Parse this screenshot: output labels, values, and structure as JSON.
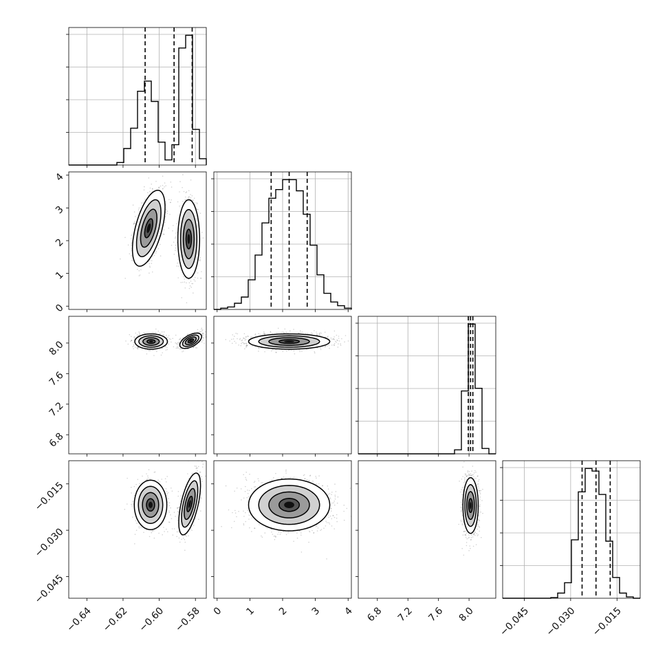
{
  "chart_data": {
    "type": "corner",
    "grid": true,
    "parameters": [
      {
        "range": [
          -0.65,
          -0.574
        ],
        "ticks": [
          -0.64,
          -0.62,
          -0.6,
          -0.58
        ],
        "tick_labels": [
          "−0.64",
          "−0.62",
          "−0.60",
          "−0.58"
        ]
      },
      {
        "range": [
          -0.1,
          4.1
        ],
        "ticks": [
          0,
          1,
          2,
          3,
          4
        ],
        "tick_labels": [
          "0",
          "1",
          "2",
          "3",
          "4"
        ]
      },
      {
        "range": [
          6.55,
          8.35
        ],
        "ticks": [
          6.8,
          7.2,
          7.6,
          8.0
        ],
        "tick_labels": [
          "6.8",
          "7.2",
          "7.6",
          "8.0"
        ]
      },
      {
        "range": [
          -0.052,
          -0.0075
        ],
        "ticks": [
          -0.045,
          -0.03,
          -0.015
        ],
        "tick_labels": [
          "−0.045",
          "−0.030",
          "−0.015"
        ]
      }
    ],
    "histograms": [
      {
        "param": 0,
        "quantiles": [
          -0.6078,
          -0.5918,
          -0.5818
        ],
        "bin_edges": [
          -0.65,
          -0.6462,
          -0.6424,
          -0.6386,
          -0.6348,
          -0.631,
          -0.6272,
          -0.6234,
          -0.6196,
          -0.6158,
          -0.612,
          -0.6082,
          -0.6044,
          -0.6006,
          -0.5968,
          -0.593,
          -0.5892,
          -0.5854,
          -0.5816,
          -0.5778,
          -0.574
        ],
        "counts": [
          0,
          0,
          0,
          0,
          0,
          0,
          0,
          0.02,
          0.13,
          0.29,
          0.58,
          0.66,
          0.5,
          0.18,
          0.04,
          0.16,
          0.92,
          1.02,
          0.28,
          0.05
        ]
      },
      {
        "param": 1,
        "quantiles": [
          1.65,
          2.2,
          2.75
        ],
        "bin_edges": [
          -0.1,
          0.11,
          0.32,
          0.53,
          0.74,
          0.95,
          1.16,
          1.37,
          1.58,
          1.79,
          2.0,
          2.21,
          2.42,
          2.63,
          2.84,
          3.05,
          3.26,
          3.47,
          3.68,
          3.89,
          4.1
        ],
        "counts": [
          0,
          0.01,
          0.02,
          0.05,
          0.1,
          0.24,
          0.44,
          0.7,
          0.9,
          0.97,
          1.05,
          1.05,
          0.96,
          0.77,
          0.52,
          0.28,
          0.13,
          0.06,
          0.03,
          0.01
        ]
      },
      {
        "param": 2,
        "quantiles": [
          7.99,
          8.02,
          8.05
        ],
        "bin_edges": [
          6.55,
          6.64,
          6.73,
          6.82,
          6.91,
          7.0,
          7.09,
          7.18,
          7.27,
          7.36,
          7.45,
          7.54,
          7.63,
          7.72,
          7.81,
          7.9,
          7.99,
          8.08,
          8.17,
          8.26,
          8.35
        ],
        "counts": [
          0,
          0,
          0,
          0,
          0,
          0,
          0,
          0,
          0,
          0,
          0,
          0,
          0,
          0,
          0.03,
          0.47,
          0.97,
          0.49,
          0.04,
          0
        ]
      },
      {
        "param": 3,
        "quantiles": [
          -0.0263,
          -0.0218,
          -0.0172
        ],
        "bin_edges": [
          -0.052,
          -0.04978,
          -0.04755,
          -0.04533,
          -0.0431,
          -0.04088,
          -0.03865,
          -0.03643,
          -0.0342,
          -0.03198,
          -0.02975,
          -0.02753,
          -0.0253,
          -0.02308,
          -0.02085,
          -0.01863,
          -0.0164,
          -0.01418,
          -0.01195,
          -0.00973,
          -0.0075
        ],
        "counts": [
          0,
          0,
          0,
          0,
          0,
          0,
          0,
          0.005,
          0.04,
          0.12,
          0.45,
          0.82,
          1.0,
          0.98,
          0.8,
          0.44,
          0.16,
          0.04,
          0.01,
          0
        ]
      }
    ],
    "joint": [
      {
        "x": 0,
        "y": 1,
        "clusters": [
          {
            "center": [
              -0.6058,
              2.38
            ],
            "sigma": [
              0.0045,
              0.58
            ],
            "rho": 0.55,
            "weight": 0.5
          },
          {
            "center": [
              -0.5837,
              2.05
            ],
            "sigma": [
              0.003,
              0.6
            ],
            "rho": 0.0,
            "weight": 0.5
          }
        ]
      },
      {
        "x": 0,
        "y": 2,
        "clusters": [
          {
            "center": [
              -0.6045,
              8.02
            ],
            "sigma": [
              0.0045,
              0.05
            ],
            "rho": 0.0,
            "weight": 0.5
          },
          {
            "center": [
              -0.5826,
              8.03
            ],
            "sigma": [
              0.003,
              0.05
            ],
            "rho": 0.55,
            "weight": 0.5
          }
        ]
      },
      {
        "x": 1,
        "y": 2,
        "clusters": [
          {
            "center": [
              2.2,
              8.02
            ],
            "sigma": [
              0.62,
              0.05
            ],
            "rho": 0.0,
            "weight": 1.0
          }
        ]
      },
      {
        "x": 0,
        "y": 3,
        "clusters": [
          {
            "center": [
              -0.6048,
              -0.0218
            ],
            "sigma": [
              0.0045,
              0.004
            ],
            "rho": 0.0,
            "weight": 0.5
          },
          {
            "center": [
              -0.5832,
              -0.0215
            ],
            "sigma": [
              0.003,
              0.005
            ],
            "rho": 0.6,
            "weight": 0.5
          }
        ]
      },
      {
        "x": 1,
        "y": 3,
        "clusters": [
          {
            "center": [
              2.2,
              -0.0218
            ],
            "sigma": [
              0.62,
              0.0042
            ],
            "rho": 0.0,
            "weight": 1.0
          }
        ]
      },
      {
        "x": 2,
        "y": 3,
        "clusters": [
          {
            "center": [
              8.02,
              -0.022
            ],
            "sigma": [
              0.05,
              0.0045
            ],
            "rho": 0.0,
            "weight": 1.0
          }
        ]
      }
    ],
    "contour_levels_sigma": [
      0.5,
      1.0,
      1.5,
      2.0
    ]
  }
}
